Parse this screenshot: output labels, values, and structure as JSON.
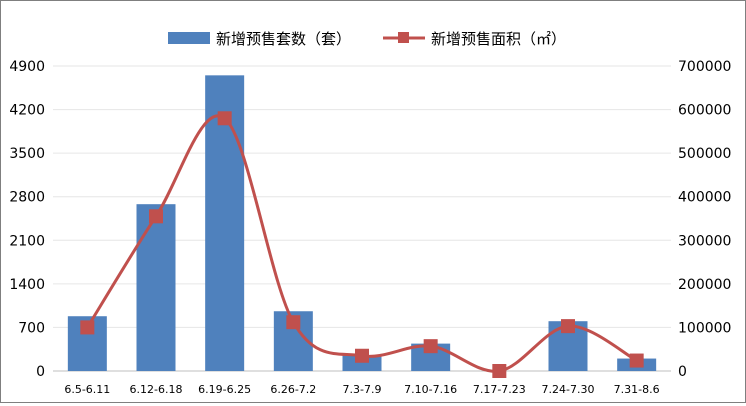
{
  "chart_data": {
    "type": "bar",
    "categories": [
      "6.5-6.11",
      "6.12-6.18",
      "6.19-6.25",
      "6.26-7.2",
      "7.3-7.9",
      "7.10-7.16",
      "7.17-7.23",
      "7.24-7.30",
      "7.31-8.6"
    ],
    "series": [
      {
        "name": "新增预售套数（套）",
        "type": "bar",
        "axis": "left",
        "color": "#4f81bd",
        "values": [
          880,
          2680,
          4750,
          960,
          250,
          440,
          0,
          800,
          200
        ]
      },
      {
        "name": "新增预售面积（㎡）",
        "type": "line",
        "axis": "right",
        "color": "#c0504d",
        "smooth": true,
        "marker": "square",
        "values": [
          100000,
          355000,
          580000,
          112000,
          35000,
          57000,
          0,
          103000,
          24000
        ]
      }
    ],
    "left_axis": {
      "ylim": [
        0,
        4900
      ],
      "ticks": [
        "0",
        "700",
        "1400",
        "2100",
        "2800",
        "3500",
        "4200",
        "4900"
      ]
    },
    "right_axis": {
      "ylim": [
        0,
        700000
      ],
      "ticks": [
        "0",
        "100000",
        "200000",
        "300000",
        "400000",
        "500000",
        "600000",
        "700000"
      ]
    },
    "grid": true,
    "legend": "top"
  }
}
